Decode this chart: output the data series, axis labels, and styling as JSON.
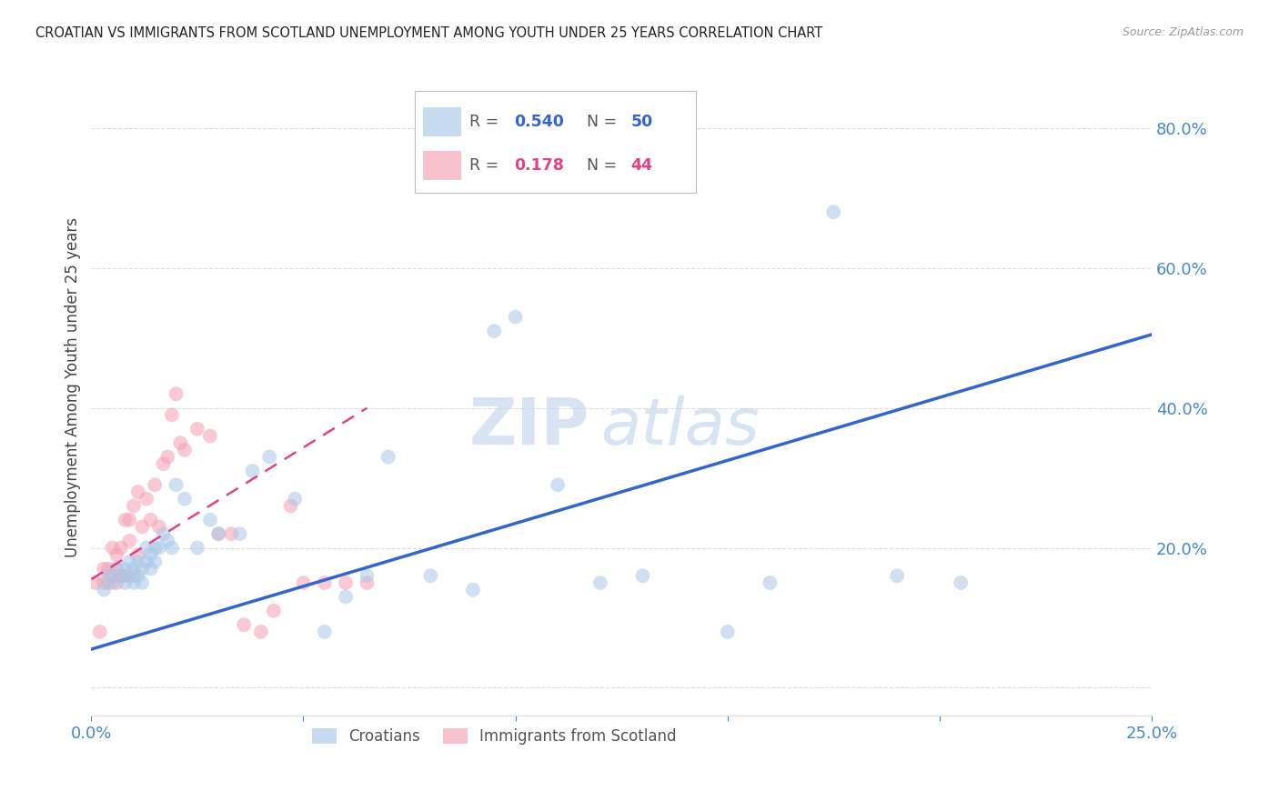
{
  "title": "CROATIAN VS IMMIGRANTS FROM SCOTLAND UNEMPLOYMENT AMONG YOUTH UNDER 25 YEARS CORRELATION CHART",
  "source": "Source: ZipAtlas.com",
  "ylabel": "Unemployment Among Youth under 25 years",
  "xlim": [
    0.0,
    0.25
  ],
  "ylim": [
    -0.04,
    0.9
  ],
  "xticks": [
    0.0,
    0.05,
    0.1,
    0.15,
    0.2,
    0.25
  ],
  "yticks": [
    0.0,
    0.2,
    0.4,
    0.6,
    0.8
  ],
  "ytick_labels": [
    "",
    "20.0%",
    "40.0%",
    "60.0%",
    "80.0%"
  ],
  "xtick_labels": [
    "0.0%",
    "",
    "",
    "",
    "",
    "25.0%"
  ],
  "croatians_scatter_x": [
    0.003,
    0.004,
    0.005,
    0.006,
    0.007,
    0.008,
    0.008,
    0.009,
    0.009,
    0.01,
    0.01,
    0.011,
    0.011,
    0.012,
    0.012,
    0.013,
    0.013,
    0.014,
    0.014,
    0.015,
    0.015,
    0.016,
    0.017,
    0.018,
    0.019,
    0.02,
    0.022,
    0.025,
    0.028,
    0.03,
    0.035,
    0.038,
    0.042,
    0.048,
    0.055,
    0.06,
    0.065,
    0.07,
    0.08,
    0.09,
    0.095,
    0.1,
    0.11,
    0.12,
    0.13,
    0.15,
    0.16,
    0.175,
    0.19,
    0.205
  ],
  "croatians_scatter_y": [
    0.14,
    0.16,
    0.15,
    0.17,
    0.16,
    0.15,
    0.17,
    0.16,
    0.18,
    0.15,
    0.17,
    0.16,
    0.18,
    0.15,
    0.17,
    0.18,
    0.2,
    0.17,
    0.19,
    0.18,
    0.2,
    0.2,
    0.22,
    0.21,
    0.2,
    0.29,
    0.27,
    0.2,
    0.24,
    0.22,
    0.22,
    0.31,
    0.33,
    0.27,
    0.08,
    0.13,
    0.16,
    0.33,
    0.16,
    0.14,
    0.51,
    0.53,
    0.29,
    0.15,
    0.16,
    0.08,
    0.15,
    0.68,
    0.16,
    0.15
  ],
  "scotland_scatter_x": [
    0.001,
    0.002,
    0.003,
    0.003,
    0.004,
    0.004,
    0.005,
    0.005,
    0.006,
    0.006,
    0.006,
    0.007,
    0.007,
    0.008,
    0.008,
    0.009,
    0.009,
    0.01,
    0.01,
    0.011,
    0.011,
    0.012,
    0.013,
    0.014,
    0.015,
    0.016,
    0.017,
    0.018,
    0.019,
    0.02,
    0.021,
    0.022,
    0.025,
    0.028,
    0.03,
    0.033,
    0.036,
    0.04,
    0.043,
    0.047,
    0.05,
    0.055,
    0.06,
    0.065
  ],
  "scotland_scatter_y": [
    0.15,
    0.08,
    0.15,
    0.17,
    0.15,
    0.17,
    0.16,
    0.2,
    0.15,
    0.17,
    0.19,
    0.16,
    0.2,
    0.16,
    0.24,
    0.21,
    0.24,
    0.16,
    0.26,
    0.19,
    0.28,
    0.23,
    0.27,
    0.24,
    0.29,
    0.23,
    0.32,
    0.33,
    0.39,
    0.42,
    0.35,
    0.34,
    0.37,
    0.36,
    0.22,
    0.22,
    0.09,
    0.08,
    0.11,
    0.26,
    0.15,
    0.15,
    0.15,
    0.15
  ],
  "blue_line_x": [
    0.0,
    0.25
  ],
  "blue_line_y": [
    0.055,
    0.505
  ],
  "pink_line_x": [
    0.0,
    0.065
  ],
  "pink_line_y": [
    0.155,
    0.4
  ],
  "watermark_zip": "ZIP",
  "watermark_atlas": "atlas",
  "bg_color": "#ffffff",
  "scatter_blue": "#aac8e8",
  "scatter_pink": "#f5a0b5",
  "line_blue": "#3366cc",
  "line_pink": "#dd4488",
  "axis_color": "#4488cc",
  "grid_color": "#dddddd",
  "title_color": "#222222",
  "ylabel_color": "#444444"
}
